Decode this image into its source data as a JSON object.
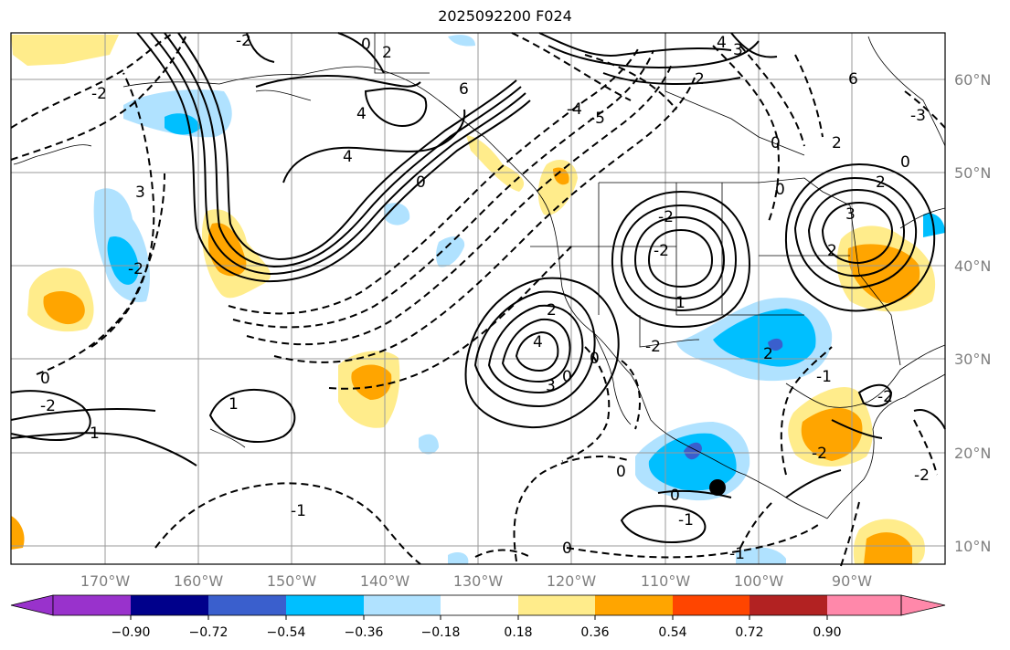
{
  "title": "2025092200 F024",
  "map": {
    "lat_labels": [
      "60°N",
      "50°N",
      "40°N",
      "30°N",
      "20°N",
      "10°N"
    ],
    "lon_labels": [
      "170°W",
      "160°W",
      "150°W",
      "140°W",
      "130°W",
      "120°W",
      "110°W",
      "100°W",
      "90°W"
    ],
    "contour_labels": [
      "0",
      "2",
      "4",
      "6",
      "4",
      "3",
      "-2",
      "2",
      "0",
      "4",
      "0",
      "-2",
      "6",
      "2",
      "0",
      "2",
      "-2",
      "-2",
      "1",
      "2",
      "3",
      "0",
      "-2",
      "-2",
      "4",
      "3",
      "0",
      "0",
      "2",
      "1",
      "1",
      "-1",
      "0",
      "0",
      "-1",
      "0",
      "-1",
      "-2",
      "2",
      "-2",
      "0",
      "-1",
      "-2",
      "-2",
      "3",
      "-3",
      "-4",
      "-5"
    ],
    "marker": "storm-center-dot"
  },
  "colorbar": {
    "ticks": [
      "−0.90",
      "−0.72",
      "−0.54",
      "−0.36",
      "−0.18",
      "0.18",
      "0.36",
      "0.54",
      "0.72",
      "0.90"
    ],
    "colors": [
      "#9932cc",
      "#00008b",
      "#3a5fcd",
      "#00bfff",
      "#b0e2ff",
      "#ffffff",
      "#ffec8b",
      "#ffa500",
      "#ff4500",
      "#b22222",
      "#ff88aa"
    ]
  }
}
